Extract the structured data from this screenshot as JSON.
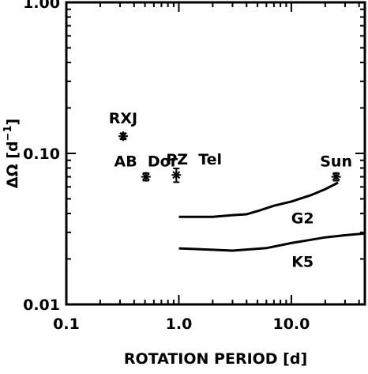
{
  "chart_data": {
    "type": "scatter",
    "xlabel": "ROTATION PERIOD [d]",
    "ylabel": "ΔΩ [d",
    "ylabel_sup": "−1",
    "ylabel_end": "]",
    "xscale": "log",
    "yscale": "log",
    "xlim": [
      0.1,
      45
    ],
    "ylim": [
      0.01,
      1.0
    ],
    "x_tick_labels": [
      {
        "value": 0.1,
        "label": "0.1"
      },
      {
        "value": 1,
        "label": "1.0"
      },
      {
        "value": 10,
        "label": "10.0"
      }
    ],
    "y_tick_labels": [
      {
        "value": 0.01,
        "label": "0.01"
      },
      {
        "value": 0.1,
        "label": "0.10"
      },
      {
        "value": 1,
        "label": "1.00"
      }
    ],
    "grid": false,
    "points": [
      {
        "label": "RXJ",
        "x": 0.32,
        "y": 0.13,
        "err": 0.006
      },
      {
        "label": "AB  Dor",
        "x": 0.51,
        "y": 0.07,
        "err": 0.004
      },
      {
        "label": "PZ  Tel",
        "x": 0.95,
        "y": 0.072,
        "err": 0.0075
      },
      {
        "label": "Sun",
        "x": 25.0,
        "y": 0.07,
        "err": 0.004
      }
    ],
    "curves": [
      {
        "label": "G2",
        "x": [
          1.0,
          2.0,
          3.0,
          4.0,
          5.0,
          7.0,
          10.0,
          15.0,
          20.0,
          26.0
        ],
        "y": [
          0.038,
          0.038,
          0.039,
          0.0395,
          0.0415,
          0.045,
          0.048,
          0.053,
          0.058,
          0.064
        ]
      },
      {
        "label": "K5",
        "x": [
          1.0,
          2.0,
          3.0,
          4.0,
          6.0,
          10.0,
          15.0,
          20.0,
          30.0,
          45.0
        ],
        "y": [
          0.0235,
          0.023,
          0.0227,
          0.0231,
          0.0236,
          0.0255,
          0.0268,
          0.0278,
          0.0287,
          0.0295
        ]
      }
    ]
  }
}
